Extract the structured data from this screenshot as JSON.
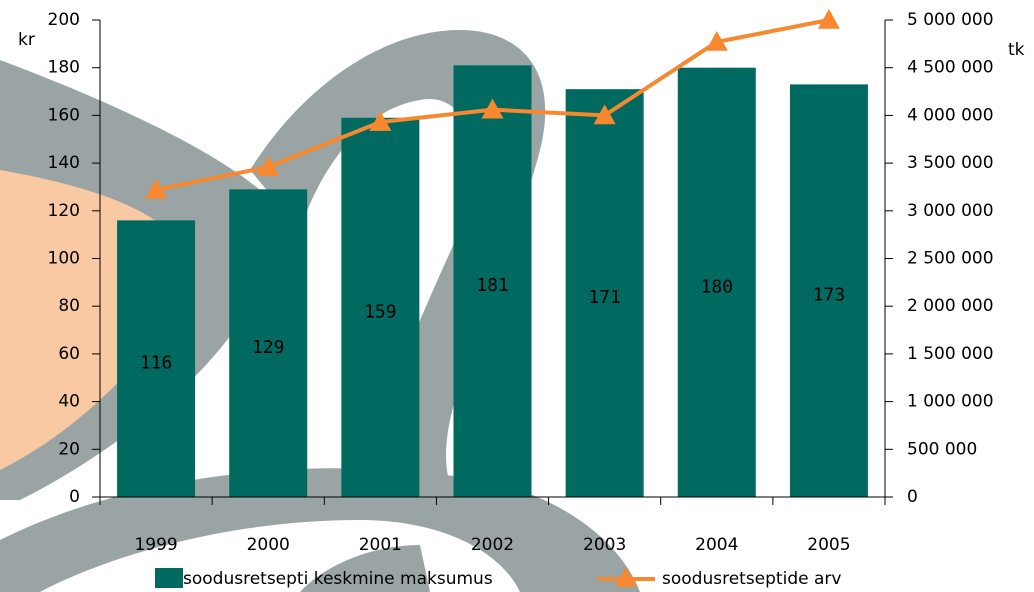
{
  "chart_data": {
    "type": "bar",
    "categories": [
      "1999",
      "2000",
      "2001",
      "2002",
      "2003",
      "2004",
      "2005"
    ],
    "y_label": "kr",
    "y2_label": "tk",
    "series": [
      {
        "name": "soodusretsepti keskmine maksumus",
        "type": "bar",
        "color": "#006a60",
        "values": [
          116,
          129,
          159,
          181,
          171,
          180,
          173
        ]
      },
      {
        "name": "soodusretseptide arv",
        "type": "line",
        "axis": "y2",
        "color": "#f7882f",
        "values": [
          3220000,
          3460000,
          3930000,
          4060000,
          4000000,
          4770000,
          5000000
        ]
      }
    ],
    "ylim": [
      0,
      200
    ],
    "yticks": [
      0,
      20,
      40,
      60,
      80,
      100,
      120,
      140,
      160,
      180,
      200
    ],
    "y2lim": [
      0,
      5000000
    ],
    "y2ticks": [
      0,
      {
        "value": 500000,
        "label": "500 000"
      },
      {
        "value": 1000000,
        "label": "1 000 000"
      },
      {
        "value": 1500000,
        "label": "1 500 000"
      },
      {
        "value": 2000000,
        "label": "2 000 000"
      },
      {
        "value": 2500000,
        "label": "2 500 000"
      },
      {
        "value": 3000000,
        "label": "3 000 000"
      },
      {
        "value": 3500000,
        "label": "3 500 000"
      },
      {
        "value": 4000000,
        "label": "4 000 000"
      },
      {
        "value": 4500000,
        "label": "4 500 000"
      },
      {
        "value": 5000000,
        "label": "5 000 000"
      }
    ],
    "legend": "bottom"
  }
}
